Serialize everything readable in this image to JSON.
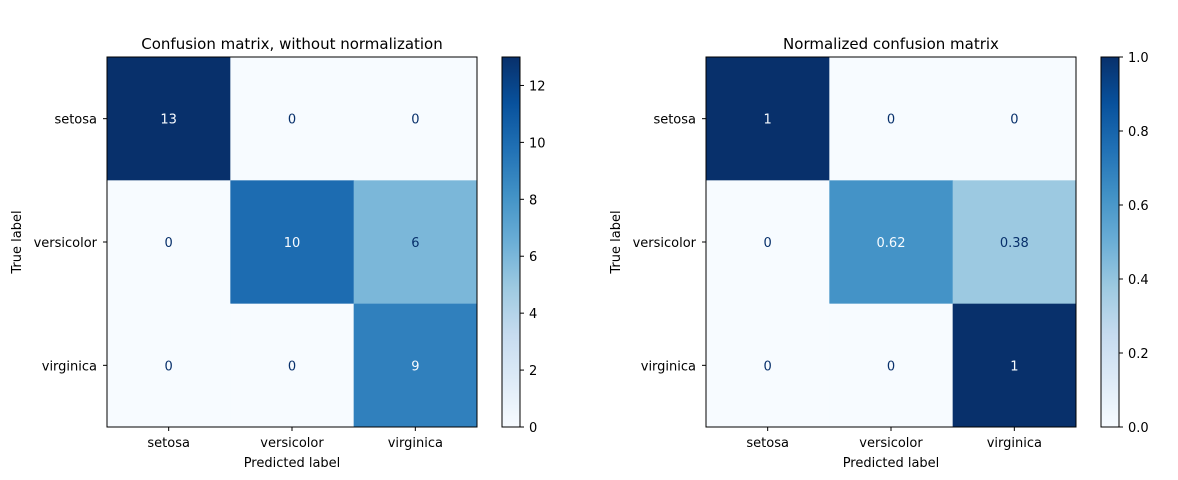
{
  "chart_data": [
    {
      "type": "heatmap",
      "title": "Confusion matrix, without normalization",
      "xlabel": "Predicted label",
      "ylabel": "True label",
      "x_categories": [
        "setosa",
        "versicolor",
        "virginica"
      ],
      "y_categories": [
        "setosa",
        "versicolor",
        "virginica"
      ],
      "values": [
        [
          13,
          0,
          0
        ],
        [
          0,
          10,
          6
        ],
        [
          0,
          0,
          9
        ]
      ],
      "cell_labels": [
        [
          "13",
          "0",
          "0"
        ],
        [
          "0",
          "10",
          "6"
        ],
        [
          "0",
          "0",
          "9"
        ]
      ],
      "colormap": "Blues",
      "color_range": [
        0,
        13
      ],
      "colorbar_ticks": [
        0,
        2,
        4,
        6,
        8,
        10,
        12
      ],
      "colorbar_tick_labels": [
        "0",
        "2",
        "4",
        "6",
        "8",
        "10",
        "12"
      ]
    },
    {
      "type": "heatmap",
      "title": "Normalized confusion matrix",
      "xlabel": "Predicted label",
      "ylabel": "True label",
      "x_categories": [
        "setosa",
        "versicolor",
        "virginica"
      ],
      "y_categories": [
        "setosa",
        "versicolor",
        "virginica"
      ],
      "values": [
        [
          1,
          0,
          0
        ],
        [
          0,
          0.62,
          0.38
        ],
        [
          0,
          0,
          1
        ]
      ],
      "cell_labels": [
        [
          "1",
          "0",
          "0"
        ],
        [
          "0",
          "0.62",
          "0.38"
        ],
        [
          "0",
          "0",
          "1"
        ]
      ],
      "colormap": "Blues",
      "color_range": [
        0,
        1
      ],
      "colorbar_ticks": [
        0,
        0.2,
        0.4,
        0.6,
        0.8,
        1.0
      ],
      "colorbar_tick_labels": [
        "0.0",
        "0.2",
        "0.4",
        "0.6",
        "0.8",
        "1.0"
      ]
    }
  ]
}
